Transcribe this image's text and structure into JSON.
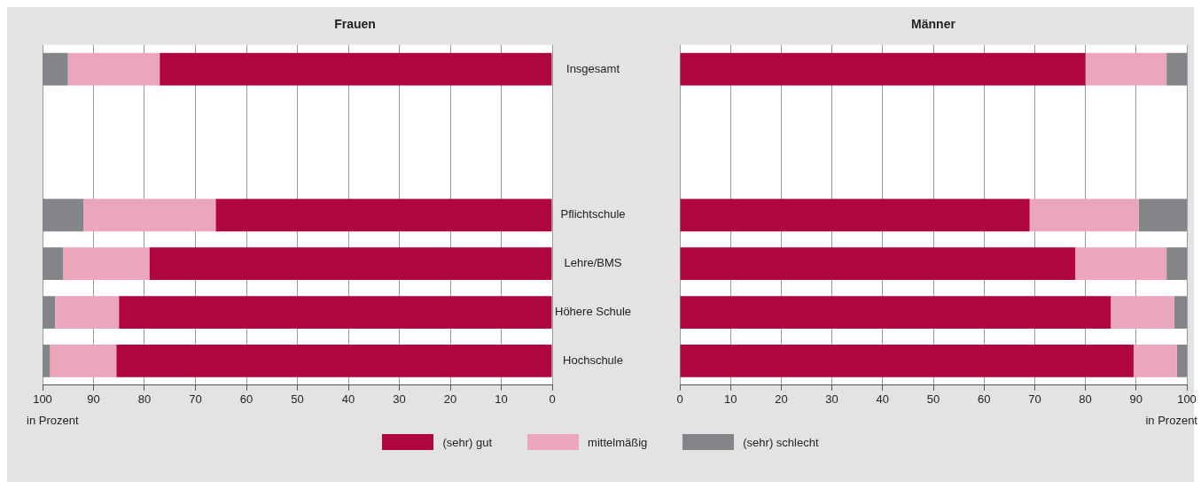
{
  "chart_data": [
    {
      "type": "bar",
      "title": "Frauen",
      "orientation": "horizontal",
      "stacked": true,
      "xlabel": "in Prozent",
      "categories": [
        "Insgesamt",
        null,
        null,
        "Pflichtschule",
        "Lehre/BMS",
        "Höhere Schule",
        "Hochschule"
      ],
      "xlim": [
        100,
        0
      ],
      "xticks": [
        100,
        90,
        80,
        70,
        60,
        50,
        40,
        30,
        20,
        10,
        0
      ],
      "grid": "x",
      "legend": "bottom",
      "series": [
        {
          "name": "(sehr) gut",
          "color": "#b0063f",
          "values": [
            77,
            null,
            null,
            66,
            79,
            85,
            85.5
          ]
        },
        {
          "name": "mittelmäßig",
          "color": "#eba6bc",
          "values": [
            18,
            null,
            null,
            26,
            17,
            12.5,
            13
          ]
        },
        {
          "name": "(sehr) schlecht",
          "color": "#848589",
          "values": [
            5,
            null,
            null,
            8,
            4,
            2.5,
            1.5
          ]
        }
      ]
    },
    {
      "type": "bar",
      "title": "Männer",
      "orientation": "horizontal",
      "stacked": true,
      "xlabel": "in Prozent",
      "tick_labels": "x",
      "categories": [
        null,
        null,
        null,
        null,
        null,
        null,
        null
      ],
      "xlim": [
        0,
        100
      ],
      "xticks": [
        0,
        10,
        20,
        30,
        40,
        50,
        60,
        70,
        80,
        90,
        100
      ],
      "grid": "x",
      "series": [
        {
          "color": "#b0063f",
          "values": [
            80,
            null,
            null,
            69,
            78,
            85,
            89.5
          ]
        },
        {
          "color": "#eba6bc",
          "values": [
            16,
            null,
            null,
            21.5,
            18,
            12.5,
            8.5
          ]
        },
        {
          "color": "#848589",
          "values": [
            4,
            null,
            null,
            9.5,
            4,
            2.5,
            2
          ]
        }
      ]
    }
  ]
}
